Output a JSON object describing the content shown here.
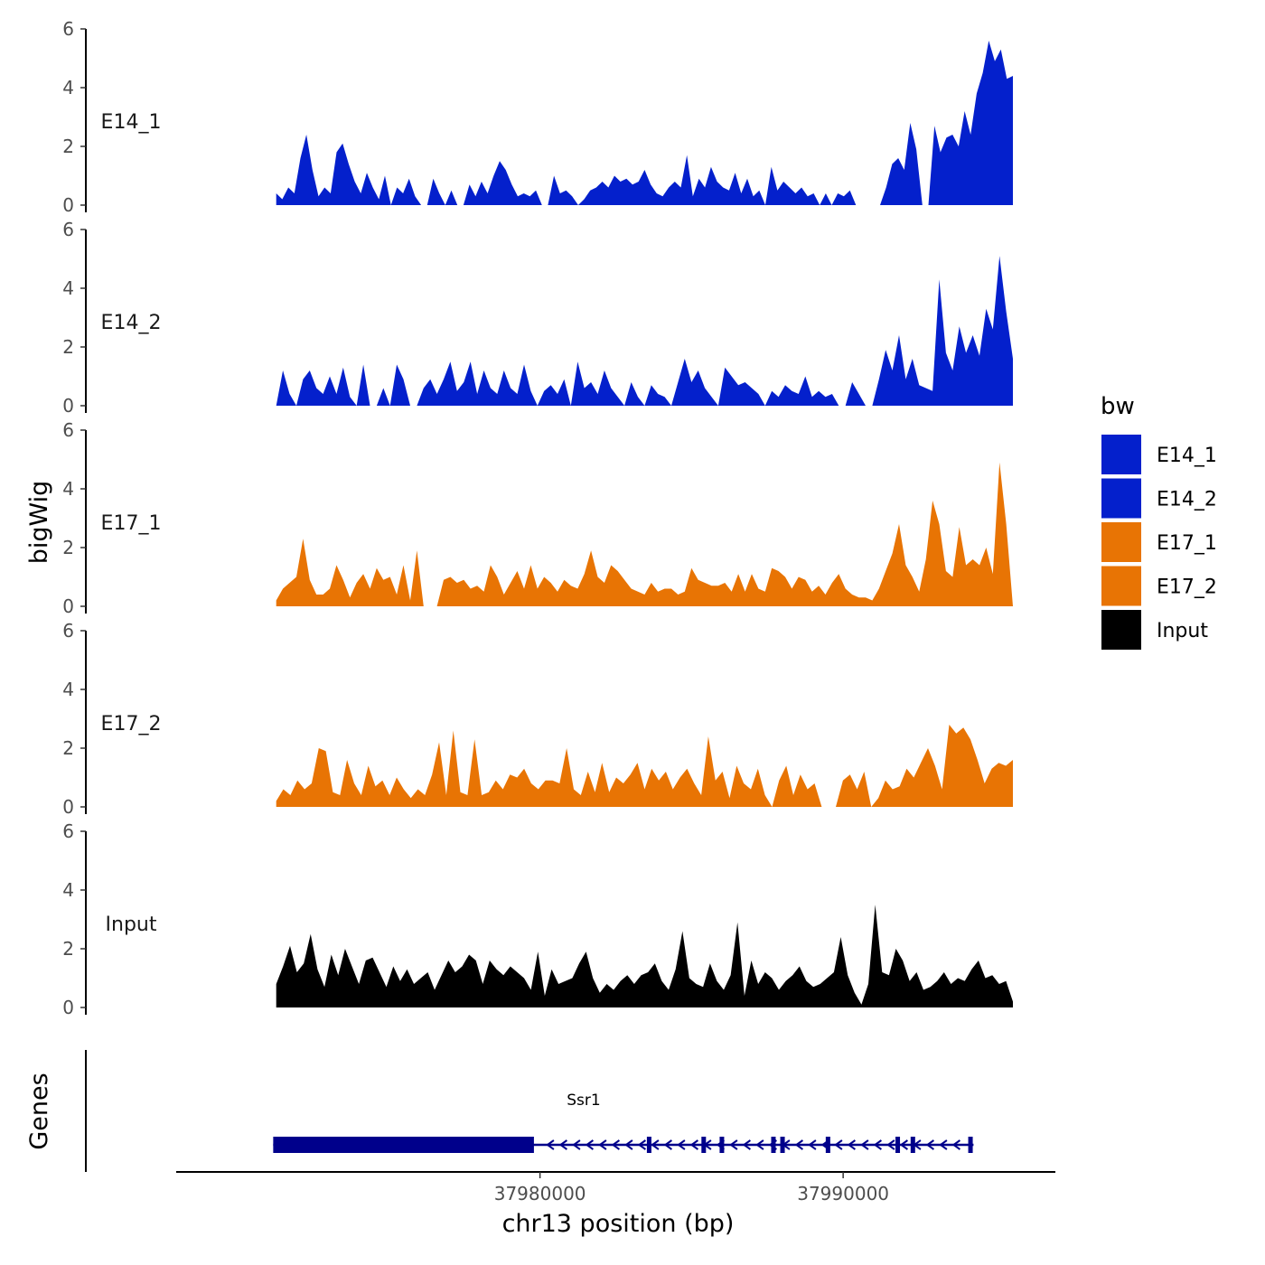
{
  "chart_data": {
    "type": "area",
    "y_axis_title": "bigWig",
    "x_axis_title": "chr13 position (bp)",
    "gene_track_title": "Genes",
    "ylim": [
      0,
      6
    ],
    "y_ticks": [
      "0",
      "2",
      "4",
      "6"
    ],
    "xlim": [
      37968000,
      37997000
    ],
    "x_ticks": [
      {
        "value": 37980000,
        "label": "37980000"
      },
      {
        "value": 37990000,
        "label": "37990000"
      }
    ],
    "data_range": [
      37971300,
      37995600
    ],
    "legend": {
      "title": "bw",
      "entries": [
        {
          "label": "E14_1",
          "color": "#0420CC"
        },
        {
          "label": "E14_2",
          "color": "#0420CC"
        },
        {
          "label": "E17_1",
          "color": "#E87404"
        },
        {
          "label": "E17_2",
          "color": "#E87404"
        },
        {
          "label": "Input",
          "color": "#000000"
        }
      ]
    },
    "series": [
      {
        "name": "E14_1",
        "color": "#0420CC",
        "values": [
          0.4,
          0.2,
          0.6,
          0.4,
          1.6,
          2.4,
          1.2,
          0.3,
          0.6,
          0.4,
          1.8,
          2.1,
          1.4,
          0.8,
          0.4,
          1.1,
          0.6,
          0.2,
          1.0,
          0,
          0.6,
          0.4,
          0.9,
          0.3,
          0,
          0,
          0.9,
          0.4,
          0,
          0.5,
          0,
          0,
          0.7,
          0.3,
          0.8,
          0.4,
          1.0,
          1.5,
          1.2,
          0.7,
          0.3,
          0.4,
          0.3,
          0.5,
          0,
          0,
          1.0,
          0.4,
          0.5,
          0.3,
          0,
          0.2,
          0.5,
          0.6,
          0.8,
          0.6,
          1.0,
          0.8,
          0.9,
          0.7,
          0.8,
          1.2,
          0.7,
          0.4,
          0.3,
          0.6,
          0.8,
          0.6,
          1.7,
          0.3,
          0.9,
          0.6,
          1.3,
          0.8,
          0.6,
          0.5,
          1.1,
          0.4,
          0.9,
          0.3,
          0.5,
          0,
          1.3,
          0.5,
          0.8,
          0.6,
          0.4,
          0.6,
          0.3,
          0.4,
          0,
          0.4,
          0,
          0.4,
          0.3,
          0.5,
          0,
          0,
          0,
          0,
          0,
          0.6,
          1.4,
          1.6,
          1.2,
          2.8,
          1.9,
          0,
          0,
          2.7,
          1.8,
          2.3,
          2.4,
          2.0,
          3.2,
          2.4,
          3.8,
          4.5,
          5.6,
          4.9,
          5.3,
          4.3,
          4.4
        ]
      },
      {
        "name": "E14_2",
        "color": "#0420CC",
        "values": [
          0,
          1.2,
          0.4,
          0,
          0.9,
          1.2,
          0.6,
          0.4,
          1.0,
          0.4,
          1.3,
          0.3,
          0,
          1.4,
          0,
          0,
          0.6,
          0,
          1.4,
          0.9,
          0,
          0,
          0.6,
          0.9,
          0.4,
          0.9,
          1.5,
          0.5,
          0.8,
          1.5,
          0.4,
          1.2,
          0.6,
          0.4,
          1.2,
          0.6,
          0.4,
          1.4,
          0.5,
          0,
          0.5,
          0.7,
          0.4,
          0.9,
          0,
          1.5,
          0.6,
          0.8,
          0.4,
          1.2,
          0.6,
          0.3,
          0,
          0.8,
          0.3,
          0,
          0.7,
          0.4,
          0.3,
          0,
          0.8,
          1.6,
          0.8,
          1.2,
          0.6,
          0.3,
          0,
          1.3,
          1.0,
          0.7,
          0.8,
          0.6,
          0.4,
          0,
          0.5,
          0.3,
          0.7,
          0.5,
          0.4,
          1.0,
          0.3,
          0.5,
          0.3,
          0.4,
          0,
          0,
          0.8,
          0.4,
          0,
          0,
          0.9,
          1.9,
          1.2,
          2.4,
          0.9,
          1.6,
          0.7,
          0.6,
          0.5,
          4.3,
          1.8,
          1.2,
          2.7,
          1.8,
          2.4,
          1.7,
          3.3,
          2.6,
          5.1,
          3.2,
          1.6
        ]
      },
      {
        "name": "E17_1",
        "color": "#E87404",
        "values": [
          0.2,
          0.6,
          0.8,
          1.0,
          2.3,
          0.9,
          0.4,
          0.4,
          0.6,
          1.4,
          0.9,
          0.3,
          0.8,
          1.1,
          0.6,
          1.3,
          0.9,
          1.0,
          0.4,
          1.4,
          0.2,
          1.9,
          0,
          0,
          0,
          0.9,
          1.0,
          0.8,
          0.9,
          0.6,
          0.7,
          0.5,
          1.4,
          1.0,
          0.4,
          0.8,
          1.2,
          0.6,
          1.4,
          0.6,
          1.0,
          0.8,
          0.5,
          0.9,
          0.7,
          0.6,
          1.1,
          1.9,
          1.0,
          0.8,
          1.4,
          1.2,
          0.9,
          0.6,
          0.5,
          0.4,
          0.8,
          0.5,
          0.6,
          0.6,
          0.4,
          0.5,
          1.3,
          0.9,
          0.8,
          0.7,
          0.7,
          0.8,
          0.5,
          1.1,
          0.5,
          1.1,
          0.6,
          0.5,
          1.3,
          1.2,
          1.0,
          0.6,
          1.0,
          0.9,
          0.5,
          0.7,
          0.4,
          0.8,
          1.1,
          0.6,
          0.4,
          0.3,
          0.3,
          0.2,
          0.6,
          1.2,
          1.8,
          2.8,
          1.4,
          1.0,
          0.5,
          1.6,
          3.6,
          2.8,
          1.2,
          1.0,
          2.7,
          1.4,
          1.6,
          1.4,
          2.0,
          1.1,
          4.9,
          2.8,
          0
        ]
      },
      {
        "name": "E17_2",
        "color": "#E87404",
        "values": [
          0.2,
          0.6,
          0.4,
          0.9,
          0.6,
          0.8,
          2.0,
          1.9,
          0.5,
          0.4,
          1.6,
          0.8,
          0.4,
          1.4,
          0.7,
          0.9,
          0.4,
          1.0,
          0.6,
          0.3,
          0.6,
          0.4,
          1.1,
          2.2,
          0.4,
          2.6,
          0.5,
          0.4,
          2.3,
          0.4,
          0.5,
          0.9,
          0.6,
          1.1,
          1.0,
          1.3,
          0.8,
          0.6,
          0.9,
          0.9,
          0.8,
          2.0,
          0.6,
          0.4,
          1.2,
          0.5,
          1.5,
          0.5,
          1.0,
          0.8,
          1.1,
          1.5,
          0.6,
          1.3,
          0.9,
          1.2,
          0.6,
          1.0,
          1.3,
          0.8,
          0.4,
          2.4,
          0.9,
          1.2,
          0.3,
          1.4,
          0.8,
          0.6,
          1.3,
          0.4,
          0,
          0.9,
          1.4,
          0.4,
          1.1,
          0.6,
          0.8,
          0,
          0,
          0,
          0.9,
          1.1,
          0.6,
          1.2,
          0,
          0.3,
          0.9,
          0.6,
          0.7,
          1.3,
          1.0,
          1.5,
          2.0,
          1.4,
          0.6,
          2.8,
          2.5,
          2.7,
          2.3,
          1.6,
          0.8,
          1.3,
          1.5,
          1.4,
          1.6
        ]
      },
      {
        "name": "Input",
        "color": "#000000",
        "values": [
          0.8,
          1.4,
          2.1,
          1.2,
          1.5,
          2.5,
          1.3,
          0.7,
          1.8,
          1.1,
          2.0,
          1.4,
          0.8,
          1.6,
          1.7,
          1.2,
          0.7,
          1.4,
          0.9,
          1.3,
          0.8,
          1.0,
          1.2,
          0.6,
          1.1,
          1.6,
          1.2,
          1.4,
          1.8,
          1.6,
          0.8,
          1.6,
          1.3,
          1.1,
          1.4,
          1.2,
          1.0,
          0.6,
          1.9,
          0.4,
          1.3,
          0.8,
          0.9,
          1.0,
          1.5,
          1.9,
          1.0,
          0.5,
          0.8,
          0.6,
          0.9,
          1.1,
          0.8,
          1.1,
          1.2,
          1.5,
          0.9,
          0.6,
          1.3,
          2.6,
          1.0,
          0.8,
          0.7,
          1.5,
          0.9,
          0.6,
          1.1,
          2.9,
          0.4,
          1.6,
          0.8,
          1.2,
          1.0,
          0.6,
          0.9,
          1.1,
          1.4,
          0.9,
          0.7,
          0.8,
          1.0,
          1.2,
          2.4,
          1.1,
          0.5,
          0.1,
          0.8,
          3.5,
          1.2,
          1.1,
          2.0,
          1.6,
          0.9,
          1.2,
          0.6,
          0.7,
          0.9,
          1.2,
          0.8,
          1.0,
          0.9,
          1.3,
          1.6,
          1.0,
          1.1,
          0.8,
          0.9,
          0.2
        ]
      }
    ],
    "gene": {
      "name": "Ssr1",
      "strand": "-",
      "start": 37971200,
      "end": 37994300,
      "utr": [
        37971200,
        37979800
      ],
      "exons": [
        37983600,
        37985400,
        37986000,
        37987700,
        37988000,
        37989500,
        37991800,
        37992300,
        37994200
      ]
    }
  }
}
